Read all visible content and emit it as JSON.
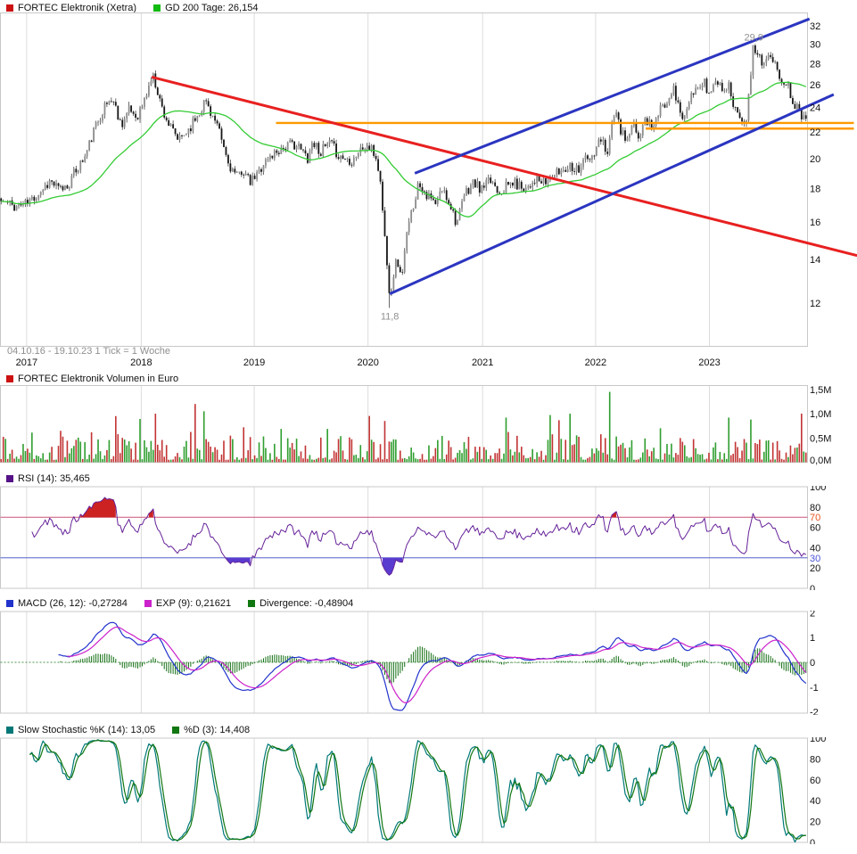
{
  "chart_data": [
    {
      "id": "price",
      "type": "candlestick",
      "legend": [
        {
          "label": "FORTEC Elektronik (Xetra)",
          "color": "#cc1111"
        },
        {
          "label": "GD 200 Tage: 26,154",
          "color": "#11bb11"
        }
      ],
      "footer": "04.10.16 - 19.10.23   1 Tick = 1 Woche",
      "x_ticks": [
        {
          "pos": 0.033,
          "label": "2017"
        },
        {
          "pos": 0.175,
          "label": "2018"
        },
        {
          "pos": 0.315,
          "label": "2019"
        },
        {
          "pos": 0.456,
          "label": "2020"
        },
        {
          "pos": 0.598,
          "label": "2021"
        },
        {
          "pos": 0.738,
          "label": "2022"
        },
        {
          "pos": 0.879,
          "label": "2023"
        }
      ],
      "y_scale": "log",
      "ylim": [
        10.3,
        33.5
      ],
      "y_ticks": [
        {
          "v": 12,
          "label": "12"
        },
        {
          "v": 14,
          "label": "14"
        },
        {
          "v": 16,
          "label": "16"
        },
        {
          "v": 18,
          "label": "18"
        },
        {
          "v": 20,
          "label": "20"
        },
        {
          "v": 22,
          "label": "22"
        },
        {
          "v": 24,
          "label": "24"
        },
        {
          "v": 26,
          "label": "26"
        },
        {
          "v": 28,
          "label": "28"
        },
        {
          "v": 30,
          "label": "30"
        },
        {
          "v": 32,
          "label": "32"
        }
      ],
      "n_points": 366,
      "sma_weeks": 40,
      "close_anchors": [
        [
          0.0,
          17.2
        ],
        [
          0.018,
          16.9
        ],
        [
          0.033,
          17.1
        ],
        [
          0.05,
          17.9
        ],
        [
          0.061,
          18.5
        ],
        [
          0.072,
          17.9
        ],
        [
          0.083,
          18.2
        ],
        [
          0.094,
          19.3
        ],
        [
          0.105,
          20.2
        ],
        [
          0.116,
          22.2
        ],
        [
          0.127,
          23.9
        ],
        [
          0.138,
          24.8
        ],
        [
          0.149,
          22.6
        ],
        [
          0.16,
          23.8
        ],
        [
          0.168,
          23.2
        ],
        [
          0.177,
          24.3
        ],
        [
          0.188,
          26.9
        ],
        [
          0.194,
          25.6
        ],
        [
          0.199,
          24.1
        ],
        [
          0.21,
          22.3
        ],
        [
          0.221,
          21.3
        ],
        [
          0.23,
          22.0
        ],
        [
          0.238,
          22.7
        ],
        [
          0.246,
          23.6
        ],
        [
          0.254,
          24.6
        ],
        [
          0.262,
          23.4
        ],
        [
          0.271,
          21.9
        ],
        [
          0.282,
          19.7
        ],
        [
          0.293,
          18.7
        ],
        [
          0.3,
          19.3
        ],
        [
          0.309,
          18.3
        ],
        [
          0.318,
          18.9
        ],
        [
          0.326,
          19.7
        ],
        [
          0.334,
          20.1
        ],
        [
          0.343,
          20.6
        ],
        [
          0.354,
          20.9
        ],
        [
          0.365,
          21.1
        ],
        [
          0.376,
          20.4
        ],
        [
          0.381,
          20.1
        ],
        [
          0.387,
          21.3
        ],
        [
          0.393,
          20.8
        ],
        [
          0.398,
          20.5
        ],
        [
          0.404,
          20.9
        ],
        [
          0.409,
          21.1
        ],
        [
          0.415,
          20.6
        ],
        [
          0.42,
          20.2
        ],
        [
          0.428,
          20.0
        ],
        [
          0.436,
          19.9
        ],
        [
          0.442,
          20.4
        ],
        [
          0.448,
          20.7
        ],
        [
          0.454,
          20.9
        ],
        [
          0.459,
          20.7
        ],
        [
          0.465,
          20.2
        ],
        [
          0.47,
          19.0
        ],
        [
          0.475,
          16.2
        ],
        [
          0.479,
          13.8
        ],
        [
          0.483,
          12.4
        ],
        [
          0.488,
          13.4
        ],
        [
          0.492,
          14.1
        ],
        [
          0.496,
          13.2
        ],
        [
          0.499,
          13.6
        ],
        [
          0.504,
          15.2
        ],
        [
          0.508,
          16.1
        ],
        [
          0.514,
          17.4
        ],
        [
          0.519,
          18.4
        ],
        [
          0.525,
          18.0
        ],
        [
          0.53,
          17.5
        ],
        [
          0.536,
          17.2
        ],
        [
          0.541,
          16.9
        ],
        [
          0.547,
          18.0
        ],
        [
          0.552,
          17.6
        ],
        [
          0.558,
          17.1
        ],
        [
          0.566,
          15.9
        ],
        [
          0.571,
          16.6
        ],
        [
          0.575,
          17.5
        ],
        [
          0.581,
          18.0
        ],
        [
          0.586,
          18.4
        ],
        [
          0.592,
          18.1
        ],
        [
          0.597,
          17.9
        ],
        [
          0.604,
          18.3
        ],
        [
          0.61,
          18.5
        ],
        [
          0.615,
          18.1
        ],
        [
          0.619,
          17.9
        ],
        [
          0.627,
          18.1
        ],
        [
          0.635,
          18.4
        ],
        [
          0.643,
          18.2
        ],
        [
          0.652,
          18.1
        ],
        [
          0.657,
          18.3
        ],
        [
          0.663,
          18.6
        ],
        [
          0.669,
          18.4
        ],
        [
          0.674,
          18.3
        ],
        [
          0.68,
          18.5
        ],
        [
          0.685,
          18.8
        ],
        [
          0.691,
          19.0
        ],
        [
          0.696,
          19.2
        ],
        [
          0.702,
          19.4
        ],
        [
          0.707,
          19.6
        ],
        [
          0.713,
          19.4
        ],
        [
          0.718,
          19.3
        ],
        [
          0.724,
          20.1
        ],
        [
          0.731,
          19.8
        ],
        [
          0.738,
          20.4
        ],
        [
          0.742,
          21.0
        ],
        [
          0.746,
          21.5
        ],
        [
          0.75,
          20.9
        ],
        [
          0.754,
          20.6
        ],
        [
          0.758,
          22.3
        ],
        [
          0.762,
          23.7
        ],
        [
          0.766,
          22.8
        ],
        [
          0.77,
          22.1
        ],
        [
          0.777,
          21.2
        ],
        [
          0.781,
          21.8
        ],
        [
          0.785,
          22.5
        ],
        [
          0.789,
          22.0
        ],
        [
          0.793,
          21.6
        ],
        [
          0.797,
          22.3
        ],
        [
          0.801,
          23.1
        ],
        [
          0.806,
          22.7
        ],
        [
          0.81,
          22.4
        ],
        [
          0.814,
          22.9
        ],
        [
          0.818,
          23.6
        ],
        [
          0.822,
          24.0
        ],
        [
          0.826,
          24.5
        ],
        [
          0.83,
          25.1
        ],
        [
          0.834,
          25.8
        ],
        [
          0.838,
          24.9
        ],
        [
          0.842,
          24.1
        ],
        [
          0.848,
          22.9
        ],
        [
          0.852,
          23.6
        ],
        [
          0.856,
          24.6
        ],
        [
          0.86,
          25.0
        ],
        [
          0.864,
          25.5
        ],
        [
          0.869,
          25.9
        ],
        [
          0.873,
          26.3
        ],
        [
          0.877,
          25.6
        ],
        [
          0.88,
          25.1
        ],
        [
          0.885,
          25.8
        ],
        [
          0.889,
          26.5
        ],
        [
          0.893,
          26.0
        ],
        [
          0.897,
          25.5
        ],
        [
          0.9,
          25.8
        ],
        [
          0.903,
          26.1
        ],
        [
          0.907,
          25.0
        ],
        [
          0.911,
          24.1
        ],
        [
          0.915,
          23.6
        ],
        [
          0.919,
          23.3
        ],
        [
          0.923,
          23.1
        ],
        [
          0.926,
          23.0
        ],
        [
          0.93,
          25.5
        ],
        [
          0.934,
          29.4
        ],
        [
          0.938,
          29.2
        ],
        [
          0.941,
          29.0
        ],
        [
          0.944,
          28.5
        ],
        [
          0.947,
          28.2
        ],
        [
          0.951,
          28.4
        ],
        [
          0.955,
          28.6
        ],
        [
          0.959,
          28.0
        ],
        [
          0.963,
          27.5
        ],
        [
          0.966,
          27.0
        ],
        [
          0.97,
          26.6
        ],
        [
          0.974,
          26.3
        ],
        [
          0.977,
          26.1
        ],
        [
          0.98,
          25.3
        ],
        [
          0.983,
          24.7
        ],
        [
          0.987,
          24.2
        ],
        [
          0.991,
          23.7
        ],
        [
          0.995,
          23.4
        ],
        [
          1.0,
          23.5
        ]
      ],
      "annotations": [
        {
          "label": "11,8",
          "t": 0.483,
          "price": 11.8,
          "place": "below"
        },
        {
          "label": "29,9",
          "t": 0.934,
          "price": 29.9,
          "place": "above"
        }
      ],
      "trendlines": [
        {
          "name": "orange-resistance-upper",
          "color": "#ff9900",
          "width": 2.4,
          "p1": [
            0.342,
            22.7
          ],
          "p2": [
            1.058,
            22.7
          ]
        },
        {
          "name": "orange-resistance-lower",
          "color": "#ff9900",
          "width": 2.4,
          "p1": [
            0.8,
            22.25
          ],
          "p2": [
            1.058,
            22.25
          ]
        },
        {
          "name": "red-downtrend-line",
          "color": "#e82020",
          "width": 3,
          "p1": [
            0.188,
            26.7
          ],
          "p2": [
            1.062,
            14.2
          ]
        },
        {
          "name": "blue-channel-upper",
          "color": "#2b35c0",
          "width": 3,
          "p1": [
            0.514,
            19.0
          ],
          "p2": [
            1.003,
            32.8
          ]
        },
        {
          "name": "blue-channel-lower",
          "color": "#2b35c0",
          "width": 3,
          "p1": [
            0.483,
            12.4
          ],
          "p2": [
            1.033,
            25.1
          ]
        }
      ],
      "colors": {
        "up": "#8c8c8c",
        "down": "#161616",
        "wick": "#2a2a2a",
        "sma": "#33cc33",
        "grid": "#dcdcdc",
        "border": "#c8c8c8",
        "axis_text": "#111111",
        "muted_text": "#8f8f8f"
      }
    },
    {
      "id": "volume",
      "type": "bar",
      "legend": [
        {
          "label": "FORTEC Elektronik Volumen in Euro",
          "color": "#cc1111"
        }
      ],
      "ylim": [
        0,
        1.58
      ],
      "y_ticks": [
        {
          "v": 0,
          "label": "0,0M"
        },
        {
          "v": 0.5,
          "label": "0,5M"
        },
        {
          "v": 1.0,
          "label": "1,0M"
        },
        {
          "v": 1.5,
          "label": "1,5M"
        }
      ],
      "spikes": [
        [
          0.143,
          0.95
        ],
        [
          0.193,
          1.0
        ],
        [
          0.241,
          1.2
        ],
        [
          0.252,
          1.05
        ],
        [
          0.3,
          0.72
        ],
        [
          0.477,
          0.85
        ],
        [
          0.627,
          0.92
        ],
        [
          0.707,
          1.0
        ],
        [
          0.757,
          1.45
        ],
        [
          0.82,
          0.7
        ],
        [
          0.932,
          0.88
        ]
      ],
      "colors": {
        "up": "#2f9e2f",
        "down": "#c23333"
      }
    },
    {
      "id": "rsi",
      "type": "rsi",
      "legend": [
        {
          "label": "RSI (14): 35,465",
          "color": "#551188"
        }
      ],
      "period": 14,
      "ylim": [
        0,
        100
      ],
      "y_ticks": [
        {
          "v": 0,
          "label": "0"
        },
        {
          "v": 20,
          "label": "20"
        },
        {
          "v": 30,
          "label": "30",
          "color": "#4b55dd"
        },
        {
          "v": 40,
          "label": "40"
        },
        {
          "v": 60,
          "label": "60"
        },
        {
          "v": 70,
          "label": "70",
          "color": "#ee5522"
        },
        {
          "v": 80,
          "label": "80"
        },
        {
          "v": 100,
          "label": "100"
        }
      ],
      "levels": [
        {
          "v": 70,
          "color": "#cc5577"
        },
        {
          "v": 30,
          "color": "#5560cc"
        }
      ],
      "colors": {
        "line": "#662299",
        "fill_high": "#cc2222",
        "fill_low": "#5a3bd0"
      }
    },
    {
      "id": "macd",
      "type": "macd",
      "legend": [
        {
          "label": "MACD (26, 12): -0,27284",
          "color": "#2233cc"
        },
        {
          "label": "EXP (9): 0,21621",
          "color": "#cc22cc"
        },
        {
          "label": "Divergence: -0,48904",
          "color": "#117711"
        }
      ],
      "fast": 12,
      "slow": 26,
      "signal": 9,
      "ylim": [
        -2.05,
        2.05
      ],
      "y_ticks": [
        {
          "v": 2,
          "label": "2"
        },
        {
          "v": 1,
          "label": "1"
        },
        {
          "v": 0,
          "label": "0"
        },
        {
          "v": -1,
          "label": "-1"
        },
        {
          "v": -2,
          "label": "-2"
        }
      ],
      "colors": {
        "macd": "#2233cc",
        "signal": "#cc22cc",
        "hist": "#157015"
      }
    },
    {
      "id": "stochastic",
      "type": "stochastic",
      "legend": [
        {
          "label": "Slow Stochastic %K (14): 13,05",
          "color": "#007878"
        },
        {
          "label": "%D (3): 14,408",
          "color": "#117711"
        }
      ],
      "k": 14,
      "d": 3,
      "ylim": [
        0,
        100
      ],
      "y_ticks": [
        {
          "v": 0,
          "label": "0"
        },
        {
          "v": 20,
          "label": "20"
        },
        {
          "v": 40,
          "label": "40"
        },
        {
          "v": 60,
          "label": "60"
        },
        {
          "v": 80,
          "label": "80"
        },
        {
          "v": 100,
          "label": "100"
        }
      ],
      "colors": {
        "k": "#007878",
        "d": "#117711"
      }
    }
  ]
}
